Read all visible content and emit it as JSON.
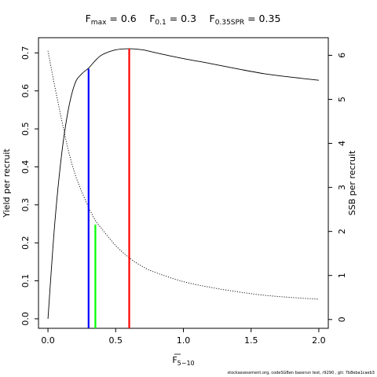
{
  "title": {
    "parts": [
      {
        "symbol": "F",
        "sub": "max",
        "value": "= 0.6"
      },
      {
        "symbol": "F",
        "sub": "0.1",
        "value": "= 0.3"
      },
      {
        "symbol": "F",
        "sub": "0.35SPR",
        "value": "= 0.35"
      }
    ]
  },
  "footer": "stockassessment.org, codeSGBen baserun test, r9290 , git: 7b8eba1caeb3",
  "chart_data": {
    "type": "line",
    "xlabel": {
      "symbol": "F",
      "sub": "5−10"
    },
    "ylabel_left": "Yield per recruit",
    "ylabel_right": "SSB per recruit",
    "xlim": [
      -0.07,
      2.07
    ],
    "ylim_left": [
      -0.025,
      0.74
    ],
    "ylim_right": [
      -0.2,
      6.4
    ],
    "x_ticks": [
      0,
      0.5,
      1,
      1.5,
      2
    ],
    "x_tick_labels": [
      "0.0",
      "0.5",
      "1.0",
      "1.5",
      "2.0"
    ],
    "y_left_ticks": [
      0,
      0.1,
      0.2,
      0.3,
      0.4,
      0.5,
      0.6,
      0.7
    ],
    "y_left_tick_labels": [
      "0.0",
      "0.1",
      "0.2",
      "0.3",
      "0.4",
      "0.5",
      "0.6",
      "0.7"
    ],
    "y_right_ticks": [
      0,
      1,
      2,
      3,
      4,
      5,
      6
    ],
    "y_right_tick_labels": [
      "0",
      "1",
      "2",
      "3",
      "4",
      "5",
      "6"
    ],
    "grid": false,
    "series": [
      {
        "axis": "left",
        "style": "solid",
        "color": "#000000",
        "x": [
          0,
          0.05,
          0.1,
          0.15,
          0.2,
          0.25,
          0.3,
          0.35,
          0.4,
          0.5,
          0.6,
          0.7,
          0.8,
          1.0,
          1.2,
          1.4,
          1.6,
          1.8,
          2.0
        ],
        "y": [
          0.0,
          0.25,
          0.43,
          0.55,
          0.62,
          0.645,
          0.66,
          0.68,
          0.695,
          0.708,
          0.711,
          0.708,
          0.7,
          0.685,
          0.672,
          0.658,
          0.645,
          0.636,
          0.628
        ]
      },
      {
        "axis": "right",
        "style": "dotted",
        "color": "#000000",
        "x": [
          0,
          0.05,
          0.1,
          0.15,
          0.2,
          0.25,
          0.3,
          0.35,
          0.4,
          0.5,
          0.6,
          0.7,
          0.8,
          1.0,
          1.2,
          1.4,
          1.6,
          1.8,
          2.0
        ],
        "y": [
          6.1,
          5.3,
          4.55,
          3.85,
          3.3,
          2.9,
          2.55,
          2.25,
          2.05,
          1.68,
          1.4,
          1.2,
          1.06,
          0.86,
          0.73,
          0.63,
          0.55,
          0.5,
          0.46
        ]
      }
    ],
    "reference_lines": [
      {
        "label": "F0.1",
        "x": 0.3,
        "y_top": 0.658,
        "color": "#0000ff"
      },
      {
        "label": "F0.35SPR",
        "x": 0.35,
        "y_top": 0.248,
        "color": "#00ff00"
      },
      {
        "label": "Fmax",
        "x": 0.6,
        "y_top": 0.711,
        "color": "#ff0000"
      }
    ]
  }
}
